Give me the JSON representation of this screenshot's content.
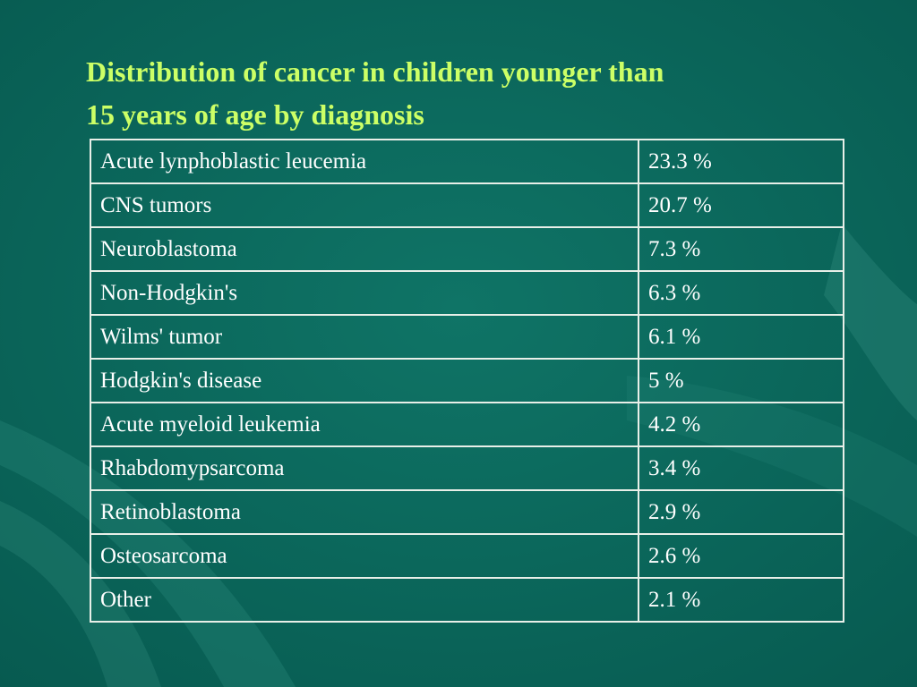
{
  "slide": {
    "title_line1": "Distribution of cancer in children younger than",
    "title_line2": "15 years of age by diagnosis",
    "colors": {
      "background": "#0b6a5f",
      "title": "#ccff66",
      "text": "#ffffff",
      "border": "#e8efe8"
    }
  },
  "table": {
    "rows": [
      {
        "diagnosis": "Acute lynphoblastic leucemia",
        "percent": "23.3 %"
      },
      {
        "diagnosis": "CNS tumors",
        "percent": "20.7 %"
      },
      {
        "diagnosis": "Neuroblastoma",
        "percent": "7.3 %"
      },
      {
        "diagnosis": "Non-Hodgkin's",
        "percent": "6.3 %"
      },
      {
        "diagnosis": "Wilms' tumor",
        "percent": "6.1 %"
      },
      {
        "diagnosis": "Hodgkin's disease",
        "percent": "5 %"
      },
      {
        "diagnosis": "Acute myeloid leukemia",
        "percent": "4.2 %"
      },
      {
        "diagnosis": "Rhabdomypsarcoma",
        "percent": "3.4 %"
      },
      {
        "diagnosis": "Retinoblastoma",
        "percent": "2.9 %"
      },
      {
        "diagnosis": "Osteosarcoma",
        "percent": "2.6 %"
      },
      {
        "diagnosis": "Other",
        "percent": "2.1 %"
      }
    ]
  }
}
